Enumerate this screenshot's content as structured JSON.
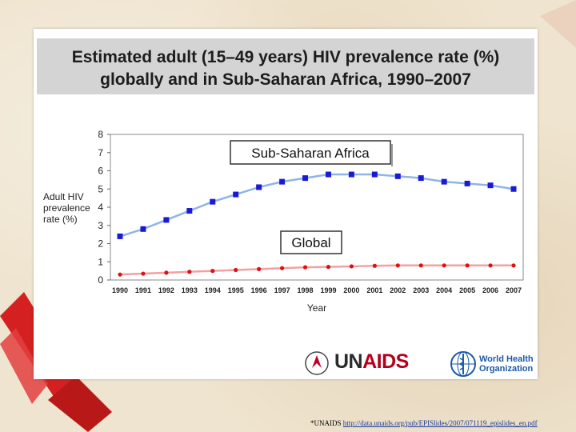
{
  "slide": {
    "title_line1": "Estimated adult (15–49 years) HIV prevalence rate (%)",
    "title_line2": "globally and in Sub-Saharan Africa, 1990–2007",
    "source_prefix": "*UNAIDS",
    "source_url": "http://data.unaids.org/pub/EPISlides/2007/071119_epislides_en.pdf"
  },
  "logos": {
    "unaids_mark": "UN",
    "unaids_word": "AIDS",
    "who_line1": "World Health",
    "who_line2": "Organization"
  },
  "colors": {
    "ssa_series": "#1a1ad6",
    "ssa_line": "#8fb4e8",
    "global_series": "#e01010",
    "global_line": "#f2a0a0",
    "ribbon": "#d42020"
  },
  "chart_data": {
    "type": "line",
    "xlabel": "Year",
    "ylabel_lines": [
      "Adult HIV",
      "prevalence",
      "rate (%)"
    ],
    "ylim": [
      0,
      8
    ],
    "yticks": [
      "0",
      "1",
      "2",
      "3",
      "4",
      "5",
      "6",
      "7",
      "8"
    ],
    "grid": false,
    "categories": [
      "1990",
      "1991",
      "1992",
      "1993",
      "1994",
      "1995",
      "1996",
      "1997",
      "1998",
      "1999",
      "2000",
      "2001",
      "2002",
      "2003",
      "2004",
      "2005",
      "2006",
      "2007"
    ],
    "series": [
      {
        "name": "Sub-Saharan Africa",
        "marker": "square",
        "values": [
          2.4,
          2.8,
          3.3,
          3.8,
          4.3,
          4.7,
          5.1,
          5.4,
          5.6,
          5.8,
          5.8,
          5.8,
          5.7,
          5.6,
          5.4,
          5.3,
          5.2,
          5.0
        ]
      },
      {
        "name": "Global",
        "marker": "circle",
        "values": [
          0.3,
          0.35,
          0.4,
          0.45,
          0.5,
          0.55,
          0.6,
          0.65,
          0.7,
          0.72,
          0.75,
          0.78,
          0.8,
          0.8,
          0.8,
          0.8,
          0.8,
          0.8
        ]
      }
    ]
  }
}
